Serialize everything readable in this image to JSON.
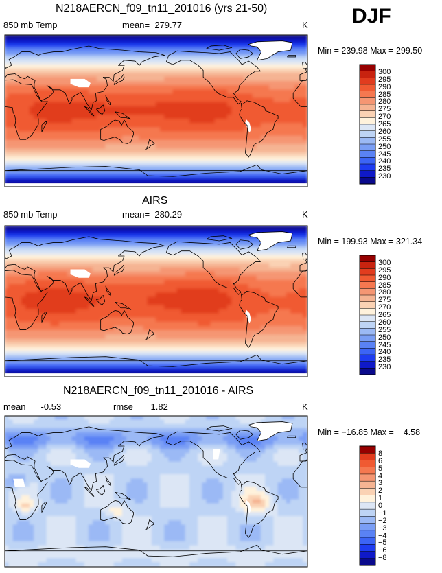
{
  "season": "DJF",
  "palettes": {
    "temperature": [
      "#0a0a8c",
      "#0f19c8",
      "#1e3cf0",
      "#3c64f5",
      "#5a82f5",
      "#7a9ef5",
      "#9bb9f5",
      "#bed4f5",
      "#dce6f5",
      "#fff2dc",
      "#fad2b4",
      "#f5b493",
      "#f59673",
      "#f57850",
      "#f05a32",
      "#e13c1e",
      "#c8230f",
      "#960000"
    ],
    "difference": [
      "#0a0a8c",
      "#0f19c8",
      "#1e3cf0",
      "#3c64f5",
      "#5a82f5",
      "#7a9ef5",
      "#9bb9f5",
      "#bed4f5",
      "#dce6f5",
      "#fff2dc",
      "#fad2b4",
      "#f5b493",
      "#f59673",
      "#f57850",
      "#f05a32",
      "#e13c1e",
      "#960000"
    ]
  },
  "chart_data": [
    {
      "type": "heatmap",
      "title": "N218AERCN_f09_tn11_201016 (yrs 21-50)",
      "left_label": "850 mb Temp",
      "center_label": "mean=  279.77",
      "units": "K",
      "min_max": "Min = 239.98 Max = 299.50",
      "colorbar_levels": [
        "300",
        "295",
        "290",
        "285",
        "280",
        "275",
        "270",
        "265",
        "260",
        "255",
        "250",
        "245",
        "240",
        "235",
        "230"
      ],
      "field": "model",
      "palette": "temperature"
    },
    {
      "type": "heatmap",
      "title": "AIRS",
      "left_label": "850 mb Temp",
      "center_label": "mean=  280.29",
      "units": "K",
      "min_max": "Min = 199.93 Max = 321.34",
      "colorbar_levels": [
        "300",
        "295",
        "290",
        "285",
        "280",
        "275",
        "270",
        "265",
        "260",
        "255",
        "250",
        "245",
        "240",
        "235",
        "230"
      ],
      "field": "obs",
      "palette": "temperature"
    },
    {
      "type": "heatmap",
      "title": "N218AERCN_f09_tn11_201016 - AIRS",
      "left_label": "mean =   -0.53",
      "center_label": "rmse =    1.82",
      "units": "K",
      "min_max": "Min = −16.85 Max =    4.58",
      "colorbar_levels": [
        "8",
        "6",
        "5",
        "4",
        "3",
        "2",
        "1",
        "0",
        "−1",
        "−2",
        "−3",
        "−4",
        "−5",
        "−6",
        "−8"
      ],
      "field": "diff",
      "palette": "difference"
    }
  ]
}
